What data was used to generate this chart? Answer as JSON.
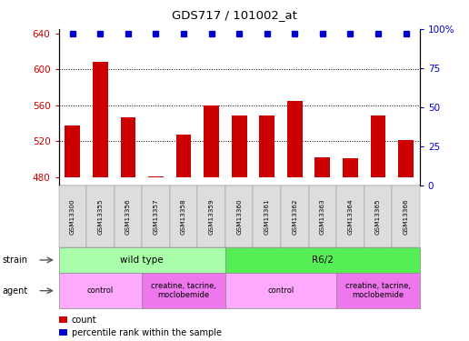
{
  "title": "GDS717 / 101002_at",
  "samples": [
    "GSM13300",
    "GSM13355",
    "GSM13356",
    "GSM13357",
    "GSM13358",
    "GSM13359",
    "GSM13360",
    "GSM13361",
    "GSM13362",
    "GSM13363",
    "GSM13364",
    "GSM13365",
    "GSM13366"
  ],
  "counts": [
    537,
    608,
    546,
    481,
    527,
    560,
    549,
    548,
    565,
    502,
    501,
    548,
    521
  ],
  "percentiles": [
    97,
    97,
    97,
    97,
    97,
    97,
    97,
    97,
    97,
    97,
    97,
    97,
    97
  ],
  "ylim_left": [
    470,
    645
  ],
  "ylim_right": [
    0,
    100
  ],
  "yticks_left": [
    480,
    520,
    560,
    600,
    640
  ],
  "yticks_right": [
    0,
    25,
    50,
    75,
    100
  ],
  "bar_color": "#cc0000",
  "dot_color": "#0000cc",
  "bar_bottom": 480,
  "strain_groups": [
    {
      "label": "wild type",
      "start": 0,
      "end": 6,
      "color": "#aaffaa"
    },
    {
      "label": "R6/2",
      "start": 6,
      "end": 13,
      "color": "#55ee55"
    }
  ],
  "agent_groups": [
    {
      "label": "control",
      "start": 0,
      "end": 3,
      "color": "#ffaaff"
    },
    {
      "label": "creatine, tacrine,\nmoclobemide",
      "start": 3,
      "end": 6,
      "color": "#ee77ee"
    },
    {
      "label": "control",
      "start": 6,
      "end": 10,
      "color": "#ffaaff"
    },
    {
      "label": "creatine, tacrine,\nmoclobemide",
      "start": 10,
      "end": 13,
      "color": "#ee77ee"
    }
  ],
  "strain_label": "strain",
  "agent_label": "agent",
  "legend_count_label": "count",
  "legend_percentile_label": "percentile rank within the sample",
  "bg_color": "#ffffff",
  "tick_label_color_left": "#cc0000",
  "tick_label_color_right": "#0000cc"
}
